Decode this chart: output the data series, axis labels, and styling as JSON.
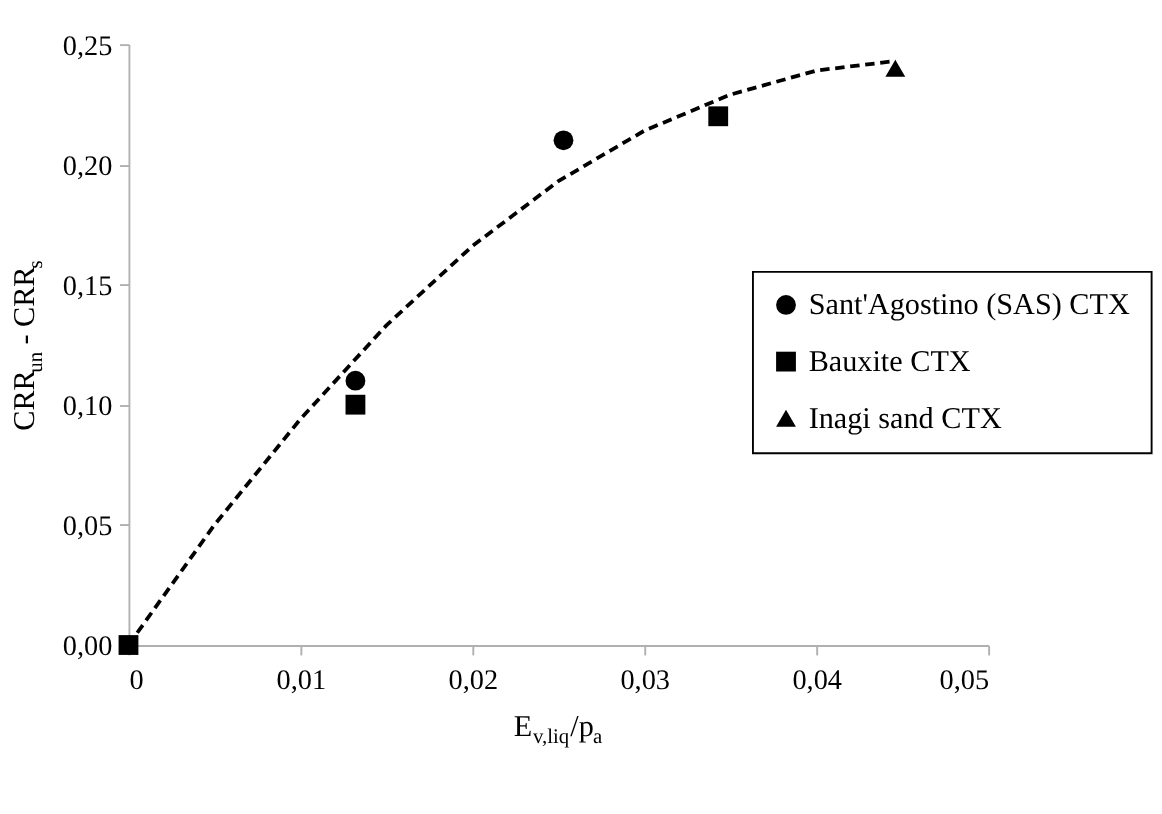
{
  "chart_data": {
    "type": "scatter",
    "xlabel": "E$_{v,liq}$/p$_{a}$",
    "ylabel": "CRR$_{un}$ - CRR$_{s}$",
    "xlim": [
      0,
      0.05
    ],
    "ylim": [
      0,
      0.25
    ],
    "xticks": [
      0,
      {
        "value": 0.01,
        "label": "0,01"
      },
      {
        "value": 0.02,
        "label": "0,02"
      },
      {
        "value": 0.03,
        "label": "0,03"
      },
      {
        "value": 0.04,
        "label": "0,04"
      },
      {
        "value": 0.05,
        "label": "0,05"
      }
    ],
    "yticks": [
      {
        "value": 0,
        "label": "0,00"
      },
      {
        "value": 0.05,
        "label": "0,05"
      },
      {
        "value": 0.1,
        "label": "0,10"
      },
      {
        "value": 0.15,
        "label": "0,15"
      },
      {
        "value": 0.2,
        "label": "0,20"
      },
      {
        "value": 0.25,
        "label": "0,25"
      }
    ],
    "grid": false,
    "legend": "right",
    "series": [
      {
        "name": "Sant'Agostino (SAS) CTX",
        "color": "#000000",
        "marker": "circle",
        "x": [
          0.0132,
          0.0253
        ],
        "values": [
          0.11,
          0.21
        ]
      },
      {
        "name": "Bauxite CTX",
        "color": "#000000",
        "marker": "square",
        "x": [
          0,
          0.0132,
          0.0343
        ],
        "values": [
          0,
          0.1,
          0.22
        ]
      },
      {
        "name": "Inagi sand CTX",
        "color": "#000000",
        "marker": "triangle",
        "x": [
          0.0446
        ],
        "values": [
          0.24
        ]
      },
      {
        "type": "line",
        "color": "#000000",
        "line_style": "dashed",
        "marker": "none",
        "x": [
          0,
          0.005,
          0.01,
          0.015,
          0.02,
          0.025,
          0.03,
          0.035,
          0.04,
          0.0446
        ],
        "values": [
          0,
          0.05,
          0.094,
          0.133,
          0.166,
          0.193,
          0.214,
          0.229,
          0.239,
          0.243
        ]
      }
    ]
  }
}
